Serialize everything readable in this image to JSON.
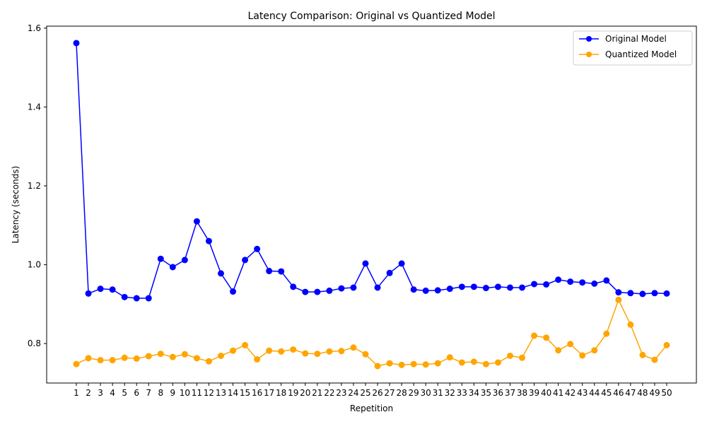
{
  "chart_data": {
    "type": "line",
    "title": "Latency Comparison: Original vs Quantized Model",
    "xlabel": "Repetition",
    "ylabel": "Latency (seconds)",
    "x": [
      1,
      2,
      3,
      4,
      5,
      6,
      7,
      8,
      9,
      10,
      11,
      12,
      13,
      14,
      15,
      16,
      17,
      18,
      19,
      20,
      21,
      22,
      23,
      24,
      25,
      26,
      27,
      28,
      29,
      30,
      31,
      32,
      33,
      34,
      35,
      36,
      37,
      38,
      39,
      40,
      41,
      42,
      43,
      44,
      45,
      46,
      47,
      48,
      49,
      50
    ],
    "xticks": [
      "1",
      "2",
      "3",
      "4",
      "5",
      "6",
      "7",
      "8",
      "9",
      "10",
      "11",
      "12",
      "13",
      "14",
      "15",
      "16",
      "17",
      "18",
      "19",
      "20",
      "21",
      "22",
      "23",
      "24",
      "25",
      "26",
      "27",
      "28",
      "29",
      "30",
      "31",
      "32",
      "33",
      "34",
      "35",
      "36",
      "37",
      "38",
      "39",
      "40",
      "41",
      "42",
      "43",
      "44",
      "45",
      "46",
      "47",
      "48",
      "49",
      "50"
    ],
    "ylim": [
      0.7,
      1.605
    ],
    "yticks": [
      0.8,
      1.0,
      1.2,
      1.4,
      1.6
    ],
    "ytick_labels": [
      "0.8",
      "1.0",
      "1.2",
      "1.4",
      "1.6"
    ],
    "legend_position": "top-right",
    "grid": false,
    "series": [
      {
        "name": "Original Model",
        "color": "#0000ff",
        "marker": "circle",
        "values": [
          1.562,
          0.927,
          0.939,
          0.937,
          0.918,
          0.915,
          0.915,
          1.015,
          0.994,
          1.012,
          1.11,
          1.06,
          0.978,
          0.932,
          1.012,
          1.04,
          0.984,
          0.983,
          0.944,
          0.931,
          0.931,
          0.934,
          0.94,
          0.942,
          1.003,
          0.942,
          0.979,
          1.003,
          0.937,
          0.934,
          0.935,
          0.939,
          0.944,
          0.944,
          0.941,
          0.944,
          0.942,
          0.942,
          0.951,
          0.95,
          0.962,
          0.957,
          0.955,
          0.952,
          0.96,
          0.93,
          0.928,
          0.926,
          0.928,
          0.927
        ]
      },
      {
        "name": "Quantized Model",
        "color": "#ffa500",
        "marker": "circle",
        "values": [
          0.748,
          0.763,
          0.758,
          0.758,
          0.764,
          0.762,
          0.768,
          0.774,
          0.766,
          0.773,
          0.763,
          0.755,
          0.769,
          0.782,
          0.796,
          0.76,
          0.782,
          0.78,
          0.785,
          0.775,
          0.774,
          0.78,
          0.781,
          0.79,
          0.773,
          0.743,
          0.75,
          0.746,
          0.748,
          0.747,
          0.75,
          0.765,
          0.752,
          0.754,
          0.748,
          0.752,
          0.769,
          0.764,
          0.82,
          0.815,
          0.783,
          0.799,
          0.77,
          0.783,
          0.825,
          0.911,
          0.848,
          0.771,
          0.759,
          0.796
        ]
      }
    ]
  }
}
